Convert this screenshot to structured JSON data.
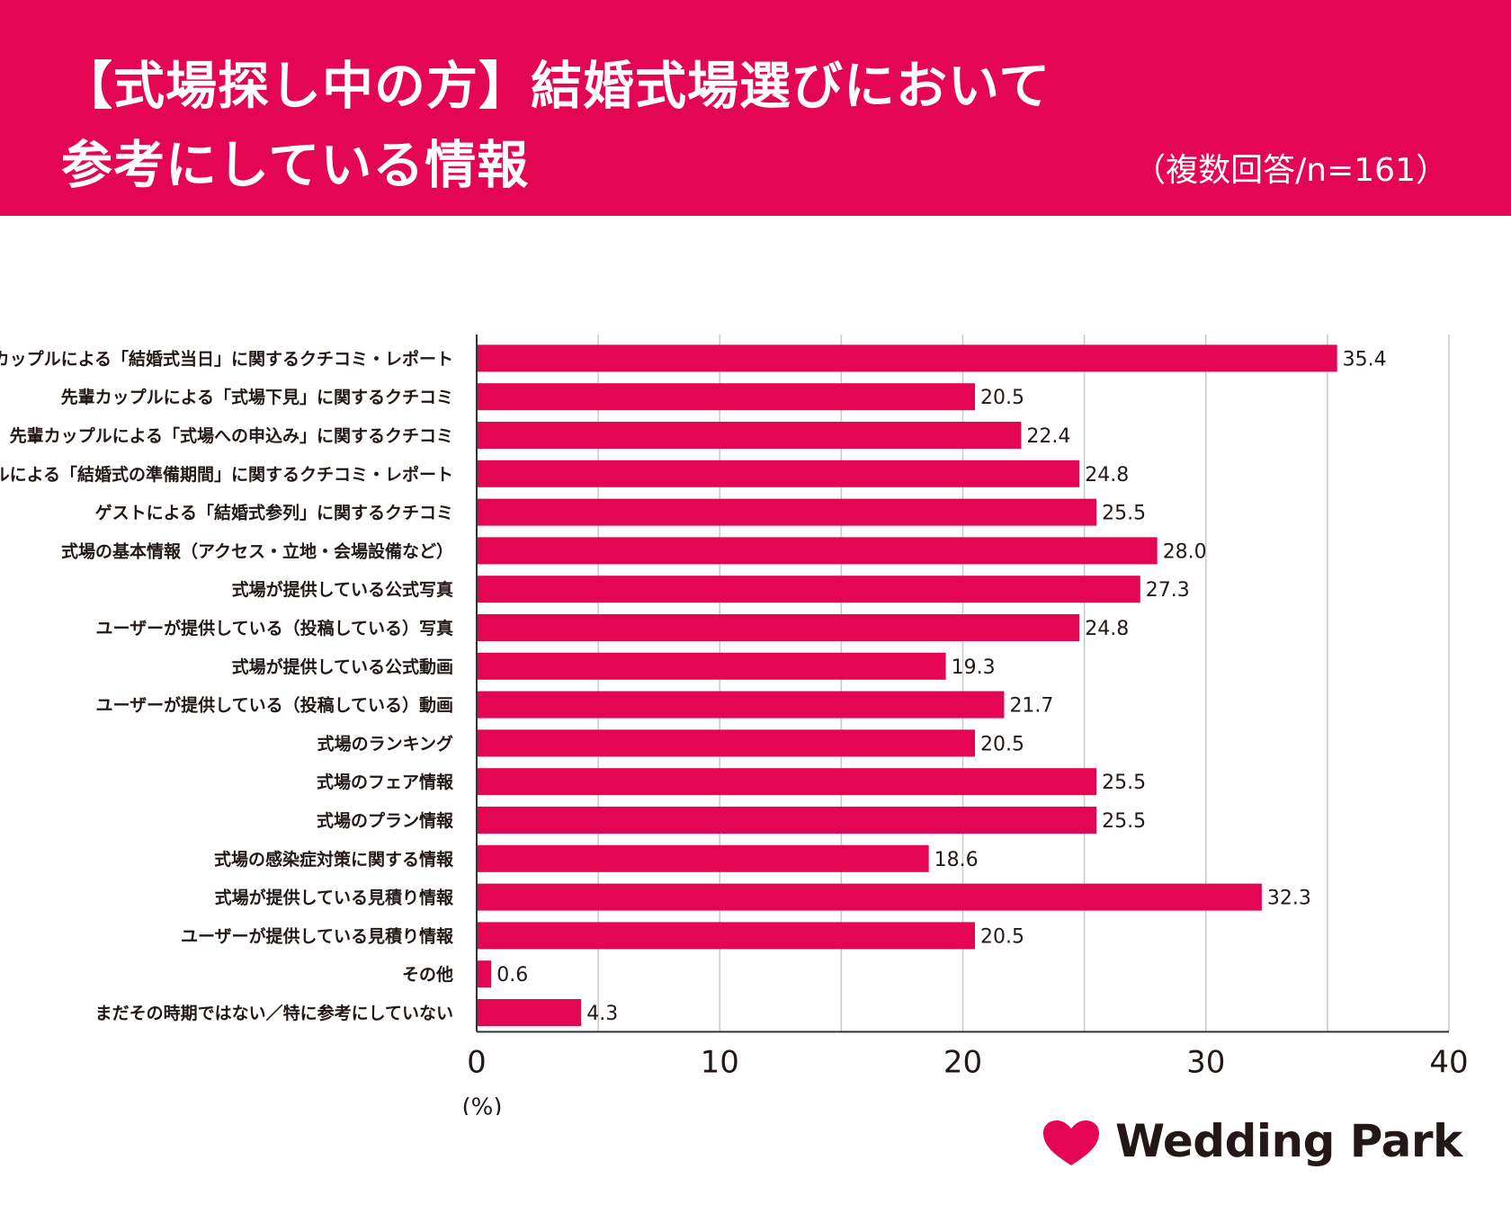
{
  "header": {
    "title_line1": "【式場探し中の方】結婚式場選びにおいて",
    "title_line2": "参考にしている情報",
    "subtitle": "（複数回答/n=161）"
  },
  "colors": {
    "brand": "#e40553",
    "bar": "#e40553",
    "text": "#231815",
    "grid": "#c8c8c8"
  },
  "chart_data": {
    "type": "bar",
    "orientation": "horizontal",
    "categories": [
      "先輩カップルによる「結婚式当日」に関するクチコミ・レポート",
      "先輩カップルによる「式場下見」に関するクチコミ",
      "先輩カップルによる「式場への申込み」に関するクチコミ",
      "先輩カップルによる「結婚式の準備期間」に関するクチコミ・レポート",
      "ゲストによる「結婚式参列」に関するクチコミ",
      "式場の基本情報（アクセス・立地・会場設備など）",
      "式場が提供している公式写真",
      "ユーザーが提供している（投稿している）写真",
      "式場が提供している公式動画",
      "ユーザーが提供している（投稿している）動画",
      "式場のランキング",
      "式場のフェア情報",
      "式場のプラン情報",
      "式場の感染症対策に関する情報",
      "式場が提供している見積り情報",
      "ユーザーが提供している見積り情報",
      "その他",
      "まだその時期ではない／特に参考にしていない"
    ],
    "values": [
      35.4,
      20.5,
      22.4,
      24.8,
      25.5,
      28.0,
      27.3,
      24.8,
      19.3,
      21.7,
      20.5,
      25.5,
      25.5,
      18.6,
      32.3,
      20.5,
      0.6,
      4.3
    ],
    "value_labels": [
      "35.4",
      "20.5",
      "22.4",
      "24.8",
      "25.5",
      "28.0",
      "27.3",
      "24.8",
      "19.3",
      "21.7",
      "20.5",
      "25.5",
      "25.5",
      "18.6",
      "32.3",
      "20.5",
      "0.6",
      "4.3"
    ],
    "xlim": [
      0,
      40
    ],
    "xticks": [
      0,
      10,
      20,
      30,
      40
    ],
    "xtick_labels": [
      "0",
      "10",
      "20",
      "30",
      "40"
    ],
    "xlabel": "(%)",
    "grid": true
  },
  "logo": {
    "text": "Wedding Park",
    "icon": "heart-icon"
  }
}
